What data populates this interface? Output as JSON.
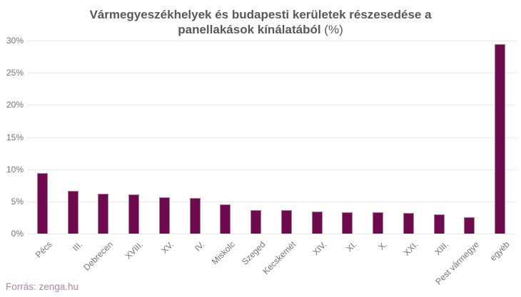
{
  "title": {
    "line1": "Vármegyeszékhelyek és budapesti kerületek részesedése a",
    "line2_bold": "panellakások kínálatából",
    "line2_suffix": "(%)"
  },
  "footer": {
    "source": "Forrás: zenga.hu"
  },
  "colors": {
    "bar": "#6e0b4e",
    "bar-edge": "rgba(255,255,255,0.45)",
    "grid": "#e8e8e8",
    "axis-text": "#737373",
    "title-text": "#58585a",
    "source-text": "#b284a6",
    "background": "#ffffff"
  },
  "chart_data": {
    "type": "bar",
    "title": "Vármegyeszékhelyek és budapesti kerületek részesedése a panellakások kínálatából (%)",
    "categories": [
      "Pécs",
      "III.",
      "Debrecen",
      "XVIII.",
      "XV.",
      "IV.",
      "Miskolc",
      "Szeged",
      "Kecskemét",
      "XIV.",
      "XI.",
      "X.",
      "XXI.",
      "XIII.",
      "Pest vármegye",
      "egyéb"
    ],
    "values": [
      9.4,
      6.6,
      6.2,
      6.1,
      5.6,
      5.5,
      4.5,
      3.7,
      3.7,
      3.4,
      3.3,
      3.3,
      3.2,
      3.0,
      2.6,
      29.5
    ],
    "xlabel": "",
    "ylabel": "",
    "ylim": [
      0,
      30
    ],
    "ytick_step": 5,
    "yticks": [
      "0%",
      "5%",
      "10%",
      "15%",
      "20%",
      "25%",
      "30%"
    ],
    "grid": true,
    "legend": false,
    "source": "Forrás: zenga.hu"
  }
}
